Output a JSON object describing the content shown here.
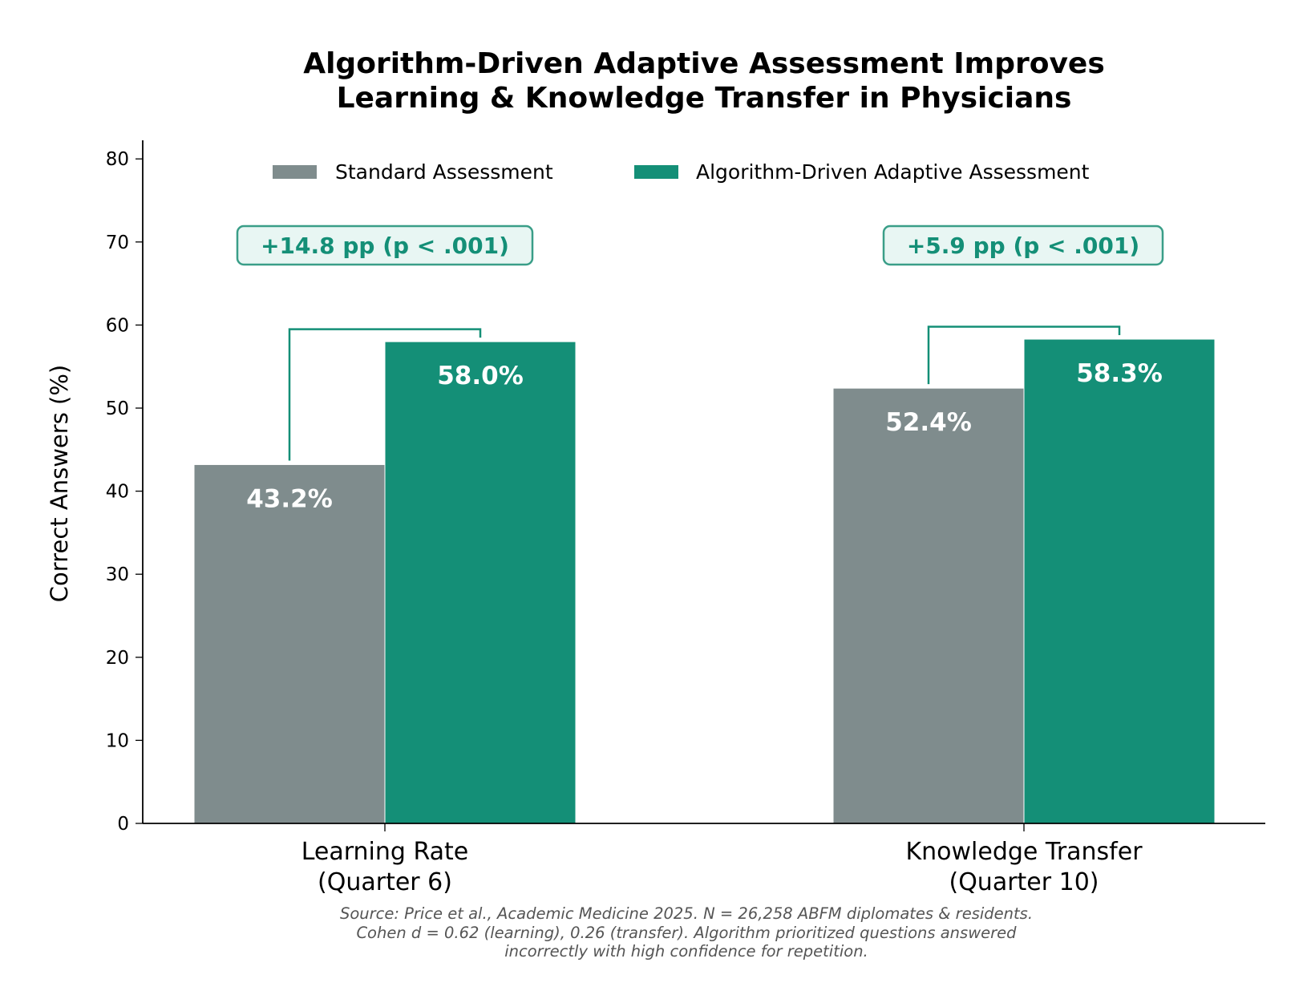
{
  "chart_data": {
    "type": "bar",
    "title": "Algorithm-Driven Adaptive Assessment Improves\nLearning & Knowledge Transfer in Physicians",
    "title_lines": [
      "Algorithm-Driven Adaptive Assessment Improves",
      "Learning & Knowledge Transfer in Physicians"
    ],
    "xlabel": "",
    "ylabel": "Correct Answers (%)",
    "ylim": [
      0,
      82
    ],
    "yticks": [
      0,
      10,
      20,
      30,
      40,
      50,
      60,
      70,
      80
    ],
    "categories": [
      "Learning Rate\n(Quarter 6)",
      "Knowledge Transfer\n(Quarter 10)"
    ],
    "category_lines": [
      [
        "Learning Rate",
        "(Quarter 6)"
      ],
      [
        "Knowledge Transfer",
        "(Quarter 10)"
      ]
    ],
    "series": [
      {
        "name": "Standard Assessment",
        "color": "#7f8c8d",
        "values": [
          43.2,
          52.4
        ],
        "labels": [
          "43.2%",
          "52.4%"
        ]
      },
      {
        "name": "Algorithm-Driven Adaptive Assessment",
        "color": "#148f77",
        "values": [
          58.0,
          58.3
        ],
        "labels": [
          "58.0%",
          "58.3%"
        ]
      }
    ],
    "annotations": [
      {
        "text": "+14.8 pp  (p < .001)",
        "bracket_top": 59.5
      },
      {
        "text": "+5.9 pp  (p < .001)",
        "bracket_top": 59.8
      }
    ],
    "legend": "top-center",
    "grid": false,
    "source_lines": [
      "Source: Price et al., Academic Medicine 2025. N = 26,258 ABFM diplomates & residents.",
      "Cohen d = 0.62 (learning), 0.26 (transfer). Algorithm prioritized questions answered",
      "incorrectly with high confidence for repetition."
    ]
  }
}
